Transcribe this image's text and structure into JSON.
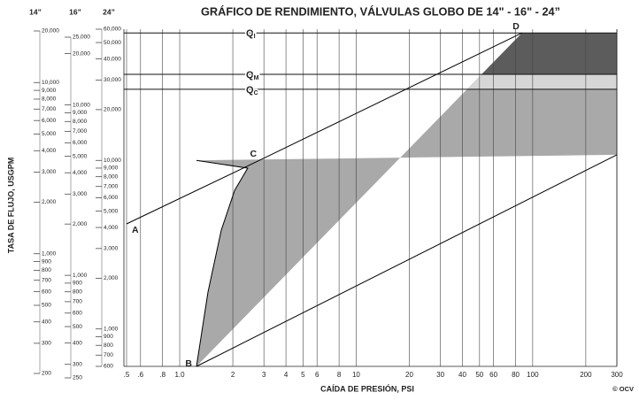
{
  "chart_data": {
    "type": "line",
    "title": "GRÁFICO DE RENDIMIENTO, VÁLVULAS GLOBO DE 14\" - 16\" - 24”",
    "xlabel": "CAÍDA DE PRESIÓN, PSI",
    "ylabel": "TASA DE FLUJO, USGPM",
    "credit": "© OCV",
    "log_x": true,
    "log_y": true,
    "xlim": [
      0.5,
      300
    ],
    "xticks": [
      {
        "value": 0.5,
        "label": ".5"
      },
      {
        "value": 0.6,
        "label": ".6"
      },
      {
        "value": 0.8,
        "label": ".8"
      },
      {
        "value": 1,
        "label": "1.0"
      },
      2,
      3,
      4,
      5,
      6,
      8,
      10,
      20,
      30,
      40,
      50,
      60,
      80,
      100,
      200,
      300
    ],
    "ylim": [
      600,
      60000
    ],
    "y_axes": [
      {
        "name": "14”",
        "ylim": [
          200,
          20000
        ],
        "yticks": [
          {
            "value": 20000,
            "label": "20,000"
          },
          {
            "value": 10000,
            "label": "10,000"
          },
          {
            "value": 9000,
            "label": "9,000"
          },
          {
            "value": 8000,
            "label": "8,000"
          },
          {
            "value": 7000,
            "label": "7,000"
          },
          {
            "value": 6000,
            "label": "6,000"
          },
          {
            "value": 5000,
            "label": "5,000"
          },
          {
            "value": 4000,
            "label": "4,000"
          },
          {
            "value": 3000,
            "label": "3,000"
          },
          {
            "value": 2000,
            "label": "2,000"
          },
          {
            "value": 1000,
            "label": "1,000"
          },
          900,
          800,
          700,
          600,
          500,
          400,
          300,
          200
        ]
      },
      {
        "name": "16”",
        "ylim": [
          250,
          25000
        ],
        "yticks": [
          {
            "value": 25000,
            "label": "25,000"
          },
          {
            "value": 20000,
            "label": "20,000"
          },
          {
            "value": 10000,
            "label": "10,000"
          },
          {
            "value": 9000,
            "label": "9,000"
          },
          {
            "value": 8000,
            "label": "8,000"
          },
          {
            "value": 7000,
            "label": "7,000"
          },
          {
            "value": 6000,
            "label": "6,000"
          },
          {
            "value": 5000,
            "label": "5,000"
          },
          {
            "value": 4000,
            "label": "4,000"
          },
          {
            "value": 3000,
            "label": "3,000"
          },
          {
            "value": 2000,
            "label": "2,000"
          },
          {
            "value": 1000,
            "label": "1,000"
          },
          900,
          800,
          700,
          600,
          500,
          400,
          300,
          250
        ]
      },
      {
        "name": "24”",
        "ylim": [
          600,
          60000
        ],
        "yticks": [
          {
            "value": 60000,
            "label": "60,000"
          },
          {
            "value": 50000,
            "label": "50,000"
          },
          {
            "value": 40000,
            "label": "40,000"
          },
          {
            "value": 30000,
            "label": "30,000"
          },
          {
            "value": 20000,
            "label": "20,000"
          },
          {
            "value": 10000,
            "label": "10,000"
          },
          {
            "value": 9000,
            "label": "9,000"
          },
          {
            "value": 8000,
            "label": "8,000"
          },
          {
            "value": 7000,
            "label": "7,000"
          },
          {
            "value": 6000,
            "label": "6,000"
          },
          {
            "value": 5000,
            "label": "5,000"
          },
          {
            "value": 4000,
            "label": "4,000"
          },
          {
            "value": 3000,
            "label": "3,000"
          },
          {
            "value": 2000,
            "label": "2,000"
          },
          {
            "value": 1000,
            "label": "1,000"
          },
          900,
          800,
          700,
          600
        ]
      }
    ],
    "series": [
      {
        "color": "#000000",
        "x": [
          0.5,
          2.83,
          87
        ],
        "values": [
          4200,
          10000,
          57000
        ]
      },
      {
        "color": "#000000",
        "x": [
          1.245,
          2.43,
          2.05,
          1.72,
          1.446,
          1.245
        ],
        "values": [
          10000,
          9000,
          6650,
          3855,
          1656,
          600
        ]
      },
      {
        "color": "#000000",
        "x": [
          1.245,
          300
        ],
        "values": [
          600,
          10800
        ]
      }
    ],
    "reference_lines": [
      {
        "label": "Q",
        "sub": "I",
        "value": 57000
      },
      {
        "label": "Q",
        "sub": "M",
        "value": 32400
      },
      {
        "label": "Q",
        "sub": "C",
        "value": 26400
      }
    ],
    "points": [
      {
        "label": "A",
        "x": 0.5,
        "value": 4200
      },
      {
        "label": "B",
        "x": 1.245,
        "value": 600
      },
      {
        "label": "C",
        "x": 2.83,
        "value": 10000
      },
      {
        "label": "D",
        "x": 87,
        "value": 57000
      }
    ],
    "region_color": "#a9a9a9",
    "upper_band_color": "#5c5c5c",
    "middle_band_color": "#d6d6d6",
    "grid": true
  }
}
